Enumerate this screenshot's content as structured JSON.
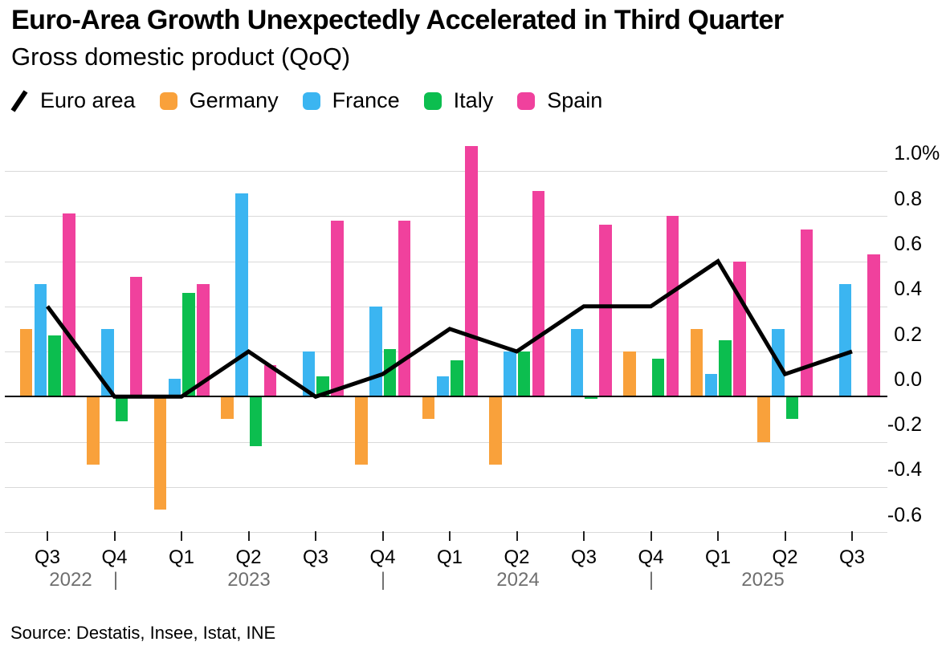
{
  "header": {
    "title": "Euro-Area Growth Unexpectedly Accelerated in Third Quarter",
    "subtitle": "Gross domestic product (QoQ)"
  },
  "legend": {
    "items": [
      {
        "key": "euro-area",
        "label": "Euro area",
        "kind": "line",
        "color": "#000000"
      },
      {
        "key": "germany",
        "label": "Germany",
        "kind": "swatch",
        "color": "#f9a13b"
      },
      {
        "key": "france",
        "label": "France",
        "kind": "swatch",
        "color": "#3bb5f1"
      },
      {
        "key": "italy",
        "label": "Italy",
        "kind": "swatch",
        "color": "#0cbe4f"
      },
      {
        "key": "spain",
        "label": "Spain",
        "kind": "swatch",
        "color": "#f0419d"
      }
    ]
  },
  "chart_data": {
    "type": "bar",
    "title": "Euro-Area Growth Unexpectedly Accelerated in Third Quarter",
    "subtitle": "Gross domestic product (QoQ)",
    "categories": [
      "Q3 2022",
      "Q4 2022",
      "Q1 2023",
      "Q2 2023",
      "Q3 2023",
      "Q4 2023",
      "Q1 2024",
      "Q2 2024",
      "Q3 2024",
      "Q4 2024",
      "Q1 2025",
      "Q2 2025",
      "Q3 2025"
    ],
    "series": [
      {
        "name": "Euro area",
        "key": "euro-area",
        "type": "line",
        "color": "#000000",
        "values": [
          0.4,
          0.0,
          0.0,
          0.2,
          0.0,
          0.1,
          0.3,
          0.2,
          0.4,
          0.4,
          0.6,
          0.1,
          0.2
        ]
      },
      {
        "name": "Germany",
        "key": "germany",
        "type": "bar",
        "color": "#f9a13b",
        "values": [
          0.3,
          -0.3,
          -0.5,
          -0.1,
          0.0,
          -0.3,
          -0.1,
          -0.3,
          0.0,
          0.2,
          0.3,
          -0.2,
          0.0
        ]
      },
      {
        "name": "France",
        "key": "france",
        "type": "bar",
        "color": "#3bb5f1",
        "values": [
          0.5,
          0.3,
          0.08,
          0.9,
          0.2,
          0.4,
          0.09,
          0.2,
          0.3,
          0.0,
          0.1,
          0.3,
          0.5
        ]
      },
      {
        "name": "Italy",
        "key": "italy",
        "type": "bar",
        "color": "#0cbe4f",
        "values": [
          0.27,
          -0.11,
          0.46,
          -0.22,
          0.09,
          0.21,
          0.16,
          0.2,
          -0.01,
          0.17,
          0.25,
          -0.1,
          0.0
        ]
      },
      {
        "name": "Spain",
        "key": "spain",
        "type": "bar",
        "color": "#f0419d",
        "values": [
          0.81,
          0.53,
          0.5,
          0.14,
          0.78,
          0.78,
          1.11,
          0.91,
          0.76,
          0.8,
          0.6,
          0.74,
          0.63
        ]
      }
    ],
    "xlabel": "",
    "ylabel": "",
    "y_unit": "%",
    "ylim": [
      -0.65,
      1.12
    ],
    "yticks": [
      1.0,
      0.8,
      0.6,
      0.4,
      0.2,
      0.0,
      -0.2,
      -0.4,
      -0.6
    ],
    "ytick_labels": [
      "1.0%",
      "0.8",
      "0.6",
      "0.4",
      "0.2",
      "0.0",
      "-0.2",
      "-0.4",
      "-0.6"
    ],
    "grid": true,
    "legend_position": "top",
    "source": "Source: Destatis, Insee, Istat, INE"
  },
  "x_axis": {
    "quarter_labels": [
      "Q3",
      "Q4",
      "Q1",
      "Q2",
      "Q3",
      "Q4",
      "Q1",
      "Q2",
      "Q3",
      "Q4",
      "Q1",
      "Q2",
      "Q3"
    ],
    "year_labels": [
      "2022",
      "2023",
      "2024",
      "2025"
    ],
    "year_separator": "|"
  }
}
